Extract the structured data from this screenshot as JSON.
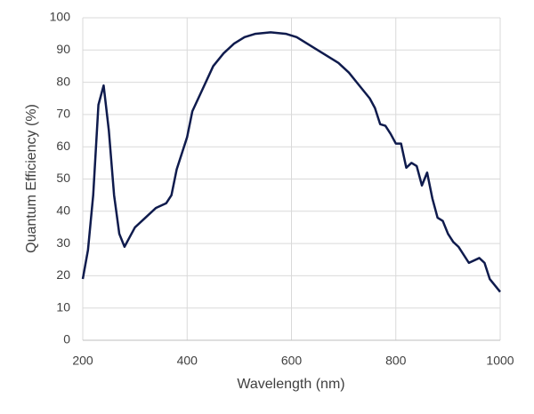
{
  "chart_data": {
    "type": "line",
    "x_label": "Wavelength (nm)",
    "y_label": "Quantum Efficiency (%)",
    "x": [
      200,
      210,
      220,
      230,
      240,
      250,
      260,
      270,
      280,
      290,
      300,
      320,
      340,
      360,
      370,
      380,
      390,
      400,
      410,
      430,
      450,
      470,
      490,
      510,
      530,
      560,
      590,
      610,
      630,
      650,
      670,
      690,
      710,
      730,
      750,
      760,
      770,
      780,
      790,
      800,
      810,
      820,
      830,
      840,
      850,
      860,
      870,
      880,
      890,
      900,
      910,
      920,
      940,
      960,
      970,
      980,
      1000
    ],
    "series": [
      {
        "name": "Quantum Efficiency",
        "color": "#0f1b4d",
        "values": [
          19,
          28,
          45,
          73,
          79,
          65,
          45,
          33,
          29,
          32,
          35,
          38,
          41,
          42.5,
          45,
          53,
          58,
          63,
          71,
          78,
          85,
          89,
          92,
          94,
          95,
          95.5,
          95,
          94,
          92,
          90,
          88,
          86,
          83,
          79,
          75,
          72,
          67,
          66.5,
          64,
          61,
          61,
          53.5,
          55,
          54,
          48,
          52,
          44,
          38,
          37,
          33,
          30.5,
          29,
          24,
          25.5,
          24,
          19,
          15
        ]
      }
    ],
    "xlim": [
      200,
      1000
    ],
    "xticks": [
      200,
      400,
      600,
      800,
      1000
    ],
    "ylim": [
      0,
      100
    ],
    "yticks": [
      0,
      10,
      20,
      30,
      40,
      50,
      60,
      70,
      80,
      90,
      100
    ],
    "grid": true
  }
}
